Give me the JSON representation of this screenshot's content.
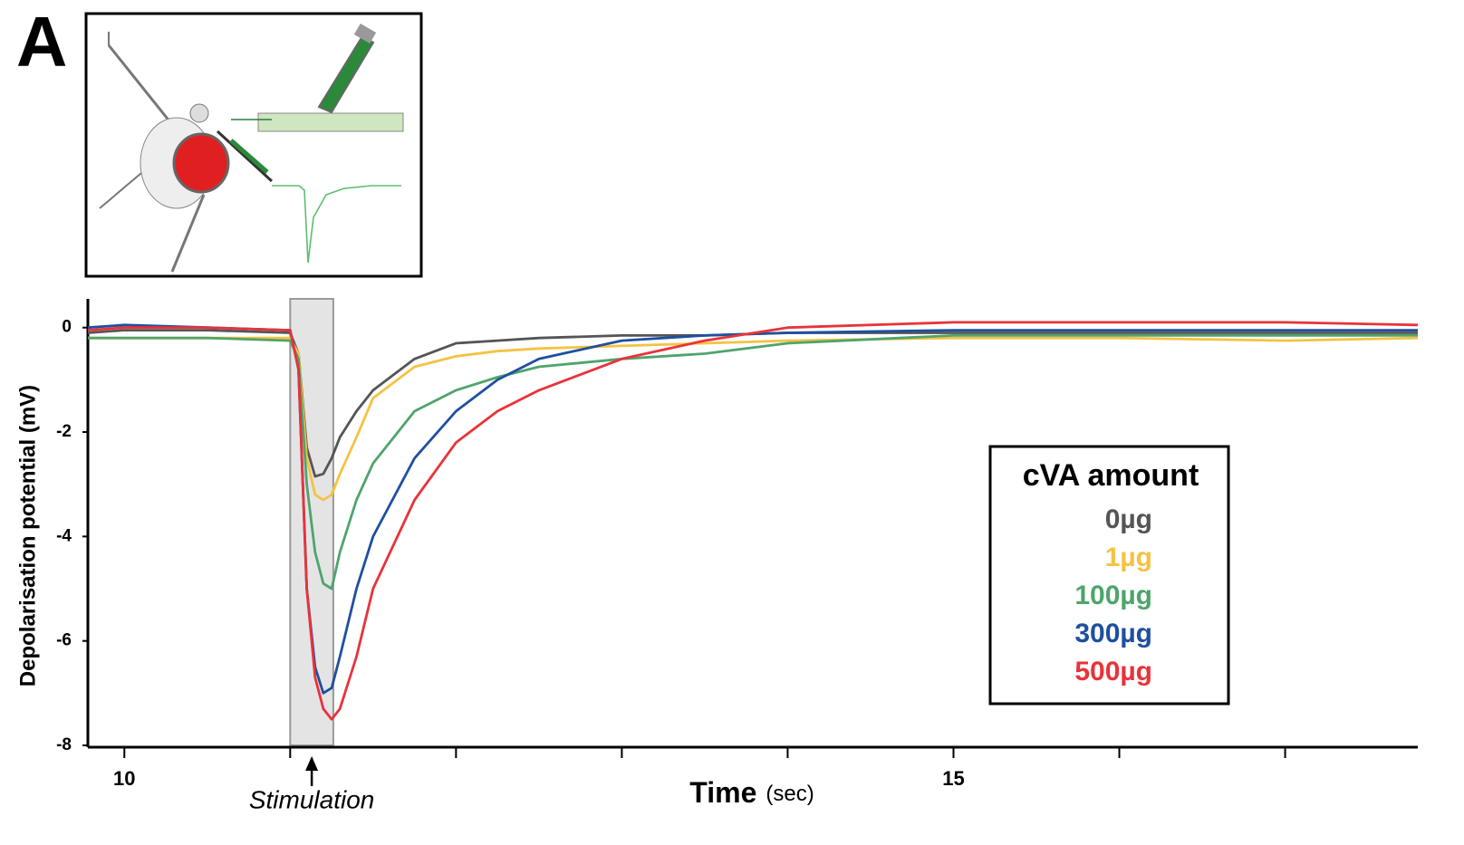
{
  "panel_label": "A",
  "chart_data": {
    "type": "line",
    "y_label": "Depolarisation potential (mV)",
    "x_label": "Time",
    "x_label_unit": "(sec)",
    "x": [
      9.78,
      10,
      10.5,
      11,
      11.05,
      11.1,
      11.15,
      11.2,
      11.25,
      11.3,
      11.4,
      11.5,
      11.75,
      12,
      12.25,
      12.5,
      13,
      13.5,
      14,
      15,
      16,
      17,
      17.8
    ],
    "series": [
      {
        "name": "0µg",
        "color": "#555555",
        "values": [
          -0.1,
          -0.05,
          -0.05,
          -0.1,
          -0.5,
          -2.3,
          -2.85,
          -2.8,
          -2.5,
          -2.1,
          -1.6,
          -1.2,
          -0.6,
          -0.3,
          -0.25,
          -0.2,
          -0.15,
          -0.15,
          -0.1,
          -0.1,
          -0.1,
          -0.1,
          -0.1
        ]
      },
      {
        "name": "1µg",
        "color": "#f5c242",
        "values": [
          -0.2,
          -0.2,
          -0.2,
          -0.2,
          -0.5,
          -2.5,
          -3.2,
          -3.3,
          -3.2,
          -2.8,
          -2.1,
          -1.35,
          -0.75,
          -0.55,
          -0.45,
          -0.4,
          -0.35,
          -0.3,
          -0.25,
          -0.2,
          -0.2,
          -0.25,
          -0.2
        ]
      },
      {
        "name": "100µg",
        "color": "#4fa46c",
        "values": [
          -0.2,
          -0.2,
          -0.2,
          -0.25,
          -0.6,
          -3.0,
          -4.3,
          -4.9,
          -5.0,
          -4.3,
          -3.3,
          -2.6,
          -1.6,
          -1.2,
          -0.95,
          -0.75,
          -0.6,
          -0.5,
          -0.3,
          -0.15,
          -0.15,
          -0.15,
          -0.15
        ]
      },
      {
        "name": "300µg",
        "color": "#1f4fa0",
        "values": [
          0,
          0.05,
          0,
          -0.05,
          -0.8,
          -5.0,
          -6.5,
          -7.0,
          -6.9,
          -6.3,
          -5.0,
          -4.0,
          -2.5,
          -1.6,
          -1.0,
          -0.6,
          -0.25,
          -0.15,
          -0.1,
          -0.05,
          -0.05,
          -0.05,
          -0.05
        ]
      },
      {
        "name": "500µg",
        "color": "#e8333a",
        "values": [
          -0.05,
          0,
          0,
          -0.05,
          -0.8,
          -5.0,
          -6.7,
          -7.3,
          -7.5,
          -7.3,
          -6.3,
          -5.0,
          -3.3,
          -2.2,
          -1.6,
          -1.2,
          -0.6,
          -0.25,
          0,
          0.1,
          0.1,
          0.1,
          0.05
        ]
      }
    ],
    "legend_title": "cVA amount",
    "xlim": [
      9.78,
      17.8
    ],
    "xticks": [
      10,
      15
    ],
    "xminor_ticks": [
      11,
      12,
      13,
      14,
      16,
      17
    ],
    "ylim": [
      -8,
      0.55
    ],
    "yticks": [
      0,
      -2,
      -4,
      -6,
      -8
    ],
    "stimulus": {
      "start": 11,
      "end": 11.26,
      "at": 11.13,
      "label": "Stimulation"
    }
  }
}
